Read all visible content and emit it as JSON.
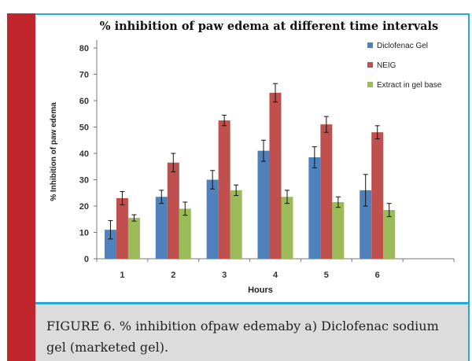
{
  "figure": {
    "caption": "FIGURE 6. % inhibition ofpaw edemaby a) Diclofenac sodium gel (marketed gel)."
  },
  "chart_data": {
    "type": "bar",
    "title": "% inhibition  of paw edema at different time  intervals",
    "xlabel": "Hours",
    "ylabel": "% Inhibition of paw edema",
    "categories": [
      "1",
      "2",
      "3",
      "4",
      "5",
      "6"
    ],
    "ylim": [
      0,
      80
    ],
    "yticks": [
      "0",
      "10",
      "20",
      "30",
      "40",
      "50",
      "60",
      "70",
      "80"
    ],
    "grid": false,
    "legend_position": "top-right",
    "series": [
      {
        "name": "Diclofenac Gel",
        "color": "#4f81bd",
        "values": [
          11,
          23.5,
          30,
          41,
          38.5,
          26
        ],
        "errors": [
          3.5,
          2.5,
          3.5,
          4,
          4,
          6
        ]
      },
      {
        "name": "NEIG",
        "color": "#c0504d",
        "values": [
          23,
          36.5,
          52.5,
          63,
          51,
          48
        ],
        "errors": [
          2.5,
          3.5,
          2,
          3.5,
          3,
          2.5
        ]
      },
      {
        "name": "Extract in gel base",
        "color": "#9bbb59",
        "values": [
          15.5,
          19,
          26,
          23.5,
          21.5,
          18.5
        ],
        "errors": [
          1.2,
          2.5,
          2,
          2.5,
          2,
          2.5
        ]
      }
    ]
  }
}
